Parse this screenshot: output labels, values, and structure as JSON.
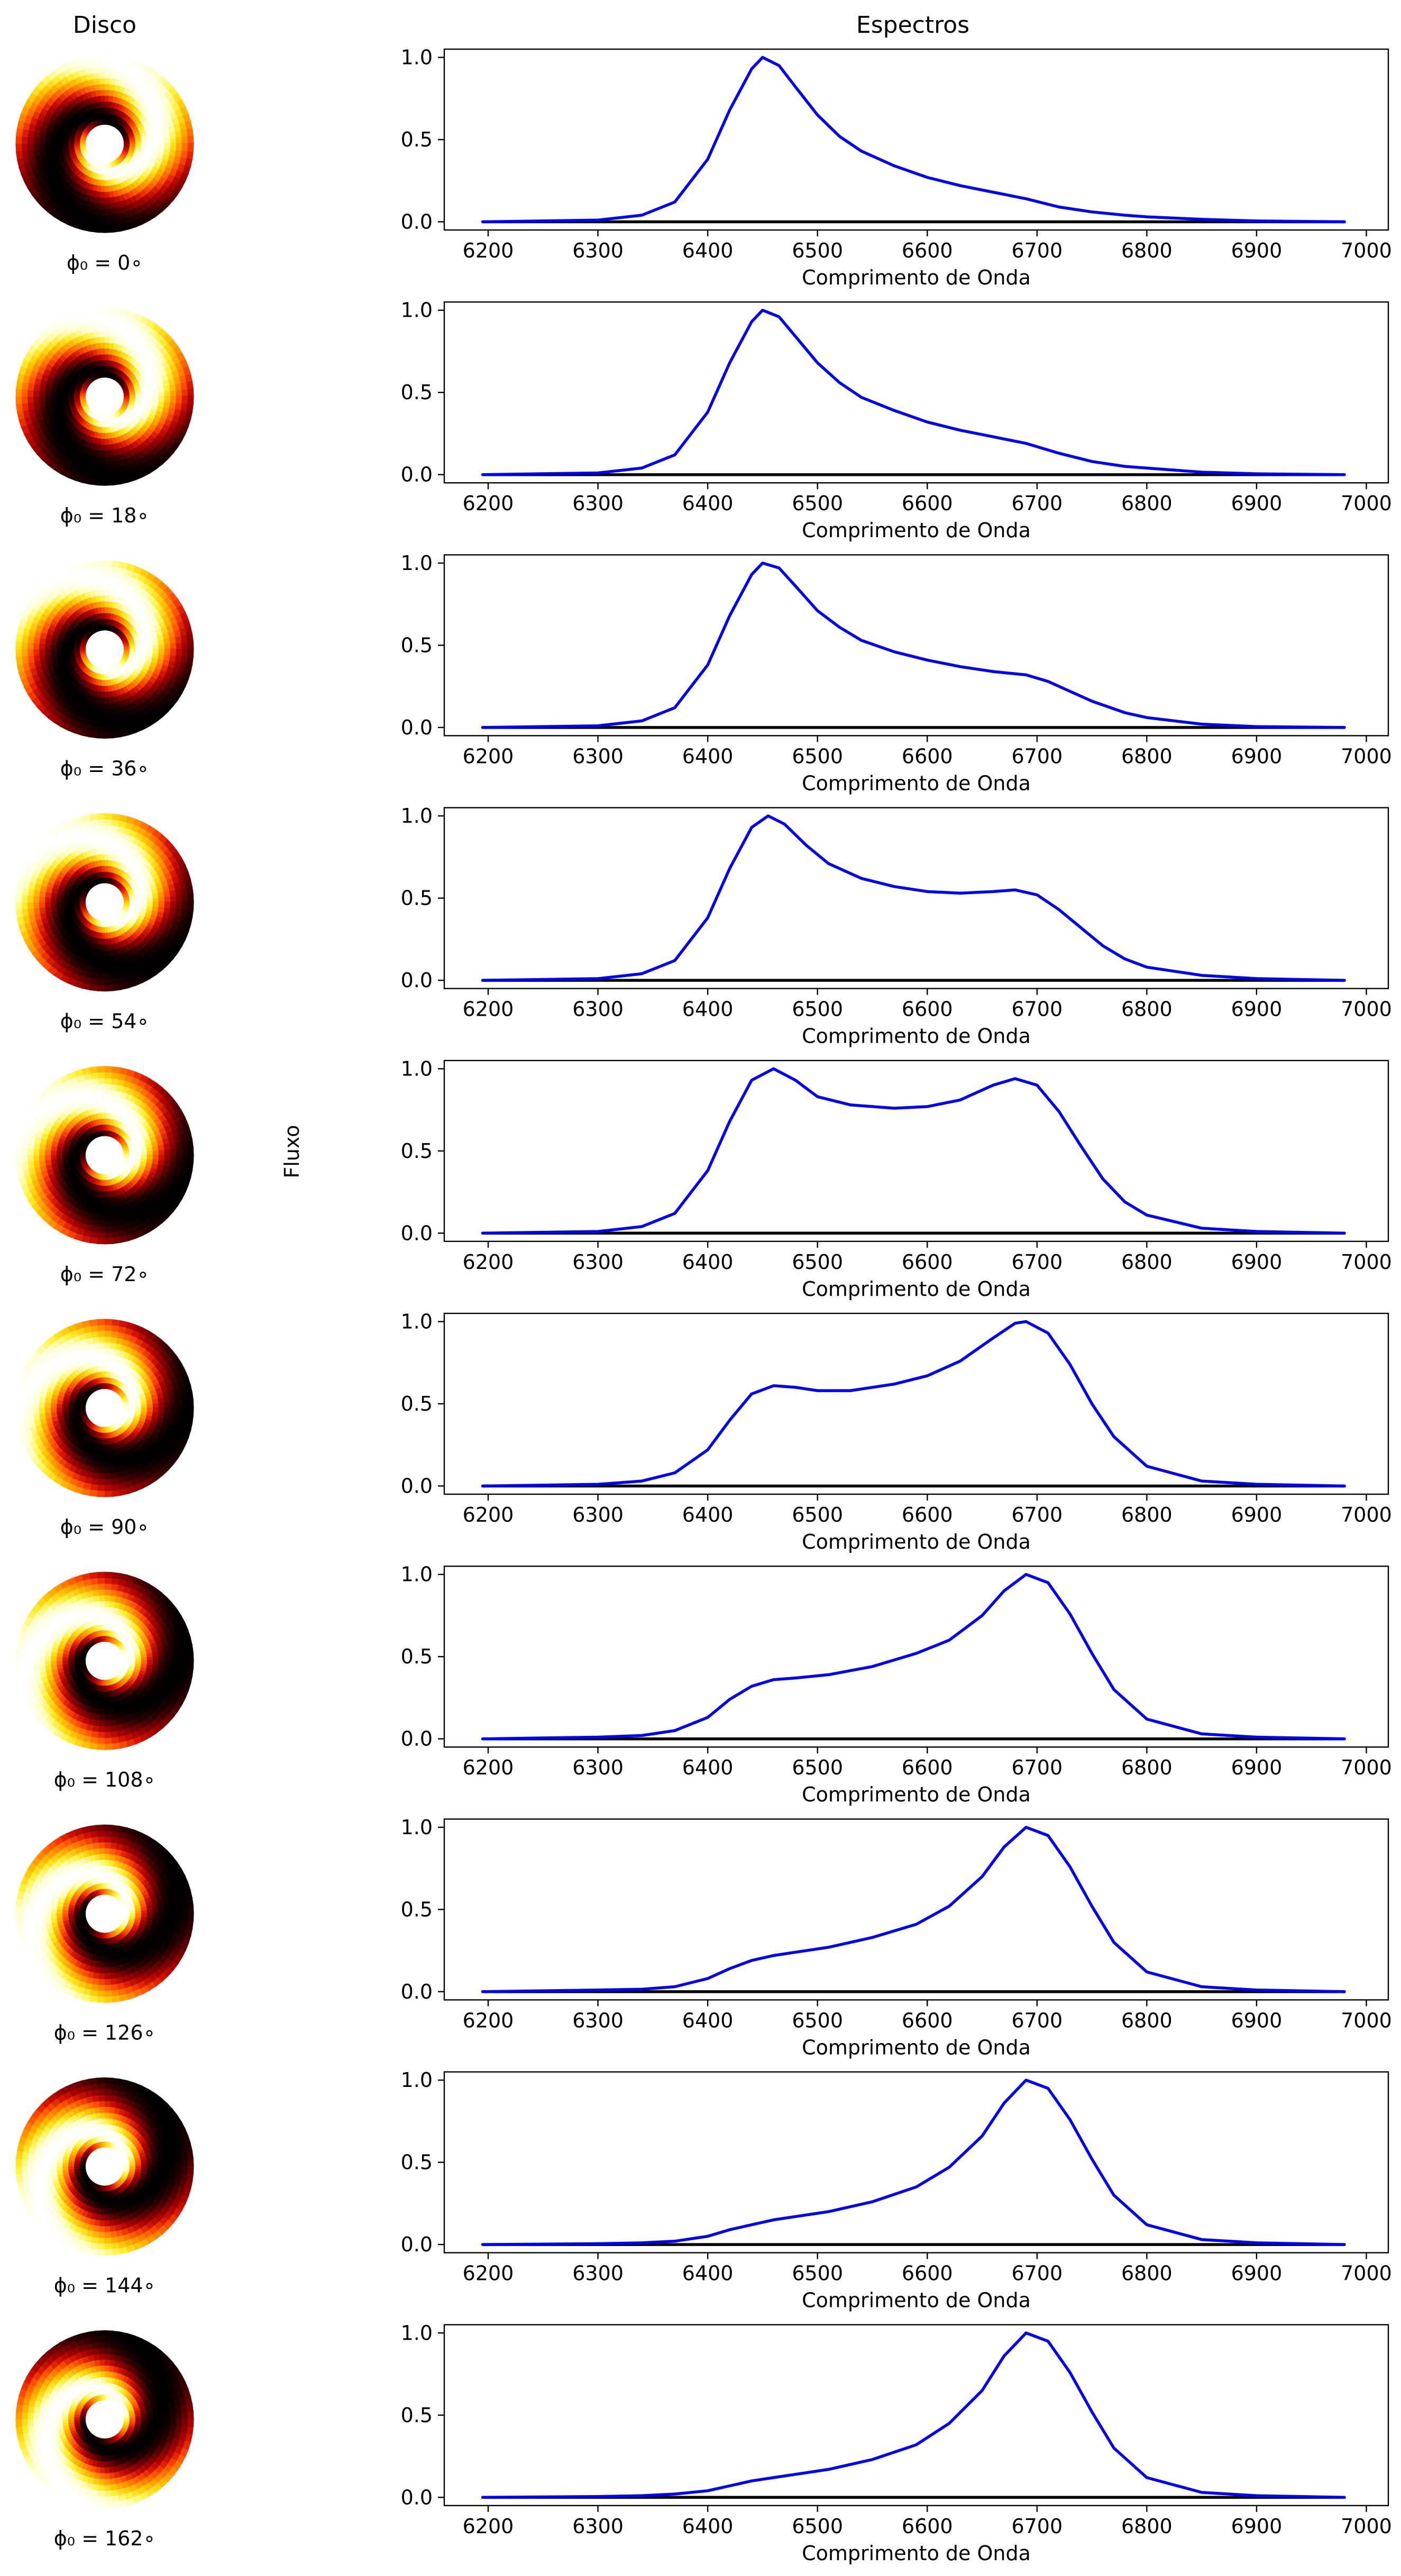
{
  "header": {
    "disk_title": "Disco",
    "spectra_title": "Espectros",
    "ylabel": "Fluxo"
  },
  "disk_colormap": [
    "#000000",
    "#2b0000",
    "#6a0000",
    "#a30000",
    "#d61600",
    "#ff4d00",
    "#ff8800",
    "#ffbf00",
    "#ffef30",
    "#ffffc8",
    "#ffffff"
  ],
  "chart_data": [
    {
      "type": "line",
      "phi_label": "ϕ₀ = 0∘",
      "phi0_deg": 0,
      "xlabel": "Comprimento de Onda",
      "xlim": [
        6160,
        7020
      ],
      "ylim": [
        -0.05,
        1.05
      ],
      "xticks": [
        6200,
        6300,
        6400,
        6500,
        6600,
        6700,
        6800,
        6900,
        7000
      ],
      "yticks": [
        "0.0",
        "0.5",
        "1.0"
      ],
      "series": [
        {
          "color": "#0000ff",
          "x": [
            6195,
            6300,
            6340,
            6370,
            6400,
            6420,
            6440,
            6450,
            6465,
            6480,
            6500,
            6520,
            6540,
            6570,
            6600,
            6630,
            6660,
            6690,
            6720,
            6750,
            6780,
            6800,
            6850,
            6900,
            6980
          ],
          "y": [
            0.0,
            0.01,
            0.04,
            0.12,
            0.38,
            0.68,
            0.93,
            1.0,
            0.95,
            0.82,
            0.65,
            0.52,
            0.43,
            0.34,
            0.27,
            0.22,
            0.18,
            0.14,
            0.09,
            0.06,
            0.04,
            0.03,
            0.015,
            0.005,
            0.0
          ]
        },
        {
          "color": "#000000",
          "x": [
            6195,
            6980
          ],
          "y": [
            0.0,
            0.0
          ]
        }
      ]
    },
    {
      "type": "line",
      "phi_label": "ϕ₀ = 18∘",
      "phi0_deg": 18,
      "xlabel": "Comprimento de Onda",
      "xlim": [
        6160,
        7020
      ],
      "ylim": [
        -0.05,
        1.05
      ],
      "xticks": [
        6200,
        6300,
        6400,
        6500,
        6600,
        6700,
        6800,
        6900,
        7000
      ],
      "yticks": [
        "0.0",
        "0.5",
        "1.0"
      ],
      "series": [
        {
          "color": "#0000ff",
          "x": [
            6195,
            6300,
            6340,
            6370,
            6400,
            6420,
            6440,
            6450,
            6465,
            6480,
            6500,
            6520,
            6540,
            6570,
            6600,
            6630,
            6660,
            6690,
            6720,
            6750,
            6780,
            6800,
            6850,
            6900,
            6980
          ],
          "y": [
            0.0,
            0.01,
            0.04,
            0.12,
            0.38,
            0.68,
            0.93,
            1.0,
            0.96,
            0.84,
            0.68,
            0.56,
            0.47,
            0.39,
            0.32,
            0.27,
            0.23,
            0.19,
            0.13,
            0.08,
            0.05,
            0.04,
            0.015,
            0.005,
            0.0
          ]
        },
        {
          "color": "#000000",
          "x": [
            6195,
            6980
          ],
          "y": [
            0.0,
            0.0
          ]
        }
      ]
    },
    {
      "type": "line",
      "phi_label": "ϕ₀ = 36∘",
      "phi0_deg": 36,
      "xlabel": "Comprimento de Onda",
      "xlim": [
        6160,
        7020
      ],
      "ylim": [
        -0.05,
        1.05
      ],
      "xticks": [
        6200,
        6300,
        6400,
        6500,
        6600,
        6700,
        6800,
        6900,
        7000
      ],
      "yticks": [
        "0.0",
        "0.5",
        "1.0"
      ],
      "series": [
        {
          "color": "#0000ff",
          "x": [
            6195,
            6300,
            6340,
            6370,
            6400,
            6420,
            6440,
            6450,
            6465,
            6480,
            6500,
            6520,
            6540,
            6570,
            6600,
            6630,
            6660,
            6690,
            6710,
            6730,
            6750,
            6780,
            6800,
            6850,
            6900,
            6980
          ],
          "y": [
            0.0,
            0.01,
            0.04,
            0.12,
            0.38,
            0.68,
            0.93,
            1.0,
            0.97,
            0.86,
            0.71,
            0.61,
            0.53,
            0.46,
            0.41,
            0.37,
            0.34,
            0.32,
            0.28,
            0.22,
            0.16,
            0.09,
            0.06,
            0.02,
            0.005,
            0.0
          ]
        },
        {
          "color": "#000000",
          "x": [
            6195,
            6980
          ],
          "y": [
            0.0,
            0.0
          ]
        }
      ]
    },
    {
      "type": "line",
      "phi_label": "ϕ₀ = 54∘",
      "phi0_deg": 54,
      "xlabel": "Comprimento de Onda",
      "xlim": [
        6160,
        7020
      ],
      "ylim": [
        -0.05,
        1.05
      ],
      "xticks": [
        6200,
        6300,
        6400,
        6500,
        6600,
        6700,
        6800,
        6900,
        7000
      ],
      "yticks": [
        "0.0",
        "0.5",
        "1.0"
      ],
      "series": [
        {
          "color": "#0000ff",
          "x": [
            6195,
            6300,
            6340,
            6370,
            6400,
            6420,
            6440,
            6455,
            6470,
            6490,
            6510,
            6540,
            6570,
            6600,
            6630,
            6660,
            6680,
            6700,
            6720,
            6740,
            6760,
            6780,
            6800,
            6850,
            6900,
            6980
          ],
          "y": [
            0.0,
            0.01,
            0.04,
            0.12,
            0.38,
            0.68,
            0.93,
            1.0,
            0.95,
            0.82,
            0.71,
            0.62,
            0.57,
            0.54,
            0.53,
            0.54,
            0.55,
            0.52,
            0.43,
            0.32,
            0.21,
            0.13,
            0.08,
            0.03,
            0.01,
            0.0
          ]
        },
        {
          "color": "#000000",
          "x": [
            6195,
            6980
          ],
          "y": [
            0.0,
            0.0
          ]
        }
      ]
    },
    {
      "type": "line",
      "phi_label": "ϕ₀ = 72∘",
      "phi0_deg": 72,
      "xlabel": "Comprimento de Onda",
      "xlim": [
        6160,
        7020
      ],
      "ylim": [
        -0.05,
        1.05
      ],
      "xticks": [
        6200,
        6300,
        6400,
        6500,
        6600,
        6700,
        6800,
        6900,
        7000
      ],
      "yticks": [
        "0.0",
        "0.5",
        "1.0"
      ],
      "series": [
        {
          "color": "#0000ff",
          "x": [
            6195,
            6300,
            6340,
            6370,
            6400,
            6420,
            6440,
            6460,
            6480,
            6500,
            6530,
            6570,
            6600,
            6630,
            6660,
            6680,
            6700,
            6720,
            6740,
            6760,
            6780,
            6800,
            6850,
            6900,
            6980
          ],
          "y": [
            0.0,
            0.01,
            0.04,
            0.12,
            0.38,
            0.68,
            0.93,
            1.0,
            0.93,
            0.83,
            0.78,
            0.76,
            0.77,
            0.81,
            0.9,
            0.94,
            0.9,
            0.74,
            0.53,
            0.33,
            0.19,
            0.11,
            0.03,
            0.01,
            0.0
          ]
        },
        {
          "color": "#000000",
          "x": [
            6195,
            6980
          ],
          "y": [
            0.0,
            0.0
          ]
        }
      ]
    },
    {
      "type": "line",
      "phi_label": "ϕ₀ = 90∘",
      "phi0_deg": 90,
      "xlabel": "Comprimento de Onda",
      "xlim": [
        6160,
        7020
      ],
      "ylim": [
        -0.05,
        1.05
      ],
      "xticks": [
        6200,
        6300,
        6400,
        6500,
        6600,
        6700,
        6800,
        6900,
        7000
      ],
      "yticks": [
        "0.0",
        "0.5",
        "1.0"
      ],
      "series": [
        {
          "color": "#0000ff",
          "x": [
            6195,
            6300,
            6340,
            6370,
            6400,
            6420,
            6440,
            6460,
            6480,
            6500,
            6530,
            6570,
            6600,
            6630,
            6660,
            6680,
            6690,
            6710,
            6730,
            6750,
            6770,
            6800,
            6850,
            6900,
            6980
          ],
          "y": [
            0.0,
            0.01,
            0.03,
            0.08,
            0.22,
            0.4,
            0.56,
            0.61,
            0.6,
            0.58,
            0.58,
            0.62,
            0.67,
            0.76,
            0.9,
            0.99,
            1.0,
            0.93,
            0.74,
            0.5,
            0.3,
            0.12,
            0.03,
            0.01,
            0.0
          ]
        },
        {
          "color": "#000000",
          "x": [
            6195,
            6980
          ],
          "y": [
            0.0,
            0.0
          ]
        }
      ]
    },
    {
      "type": "line",
      "phi_label": "ϕ₀ = 108∘",
      "phi0_deg": 108,
      "xlabel": "Comprimento de Onda",
      "xlim": [
        6160,
        7020
      ],
      "ylim": [
        -0.05,
        1.05
      ],
      "xticks": [
        6200,
        6300,
        6400,
        6500,
        6600,
        6700,
        6800,
        6900,
        7000
      ],
      "yticks": [
        "0.0",
        "0.5",
        "1.0"
      ],
      "series": [
        {
          "color": "#0000ff",
          "x": [
            6195,
            6300,
            6340,
            6370,
            6400,
            6420,
            6440,
            6460,
            6480,
            6510,
            6550,
            6590,
            6620,
            6650,
            6670,
            6690,
            6710,
            6730,
            6750,
            6770,
            6800,
            6850,
            6900,
            6980
          ],
          "y": [
            0.0,
            0.01,
            0.02,
            0.05,
            0.13,
            0.24,
            0.32,
            0.36,
            0.37,
            0.39,
            0.44,
            0.52,
            0.6,
            0.75,
            0.9,
            1.0,
            0.95,
            0.76,
            0.52,
            0.3,
            0.12,
            0.03,
            0.01,
            0.0
          ]
        },
        {
          "color": "#000000",
          "x": [
            6195,
            6980
          ],
          "y": [
            0.0,
            0.0
          ]
        }
      ]
    },
    {
      "type": "line",
      "phi_label": "ϕ₀ = 126∘",
      "phi0_deg": 126,
      "xlabel": "Comprimento de Onda",
      "xlim": [
        6160,
        7020
      ],
      "ylim": [
        -0.05,
        1.05
      ],
      "xticks": [
        6200,
        6300,
        6400,
        6500,
        6600,
        6700,
        6800,
        6900,
        7000
      ],
      "yticks": [
        "0.0",
        "0.5",
        "1.0"
      ],
      "series": [
        {
          "color": "#0000ff",
          "x": [
            6195,
            6300,
            6340,
            6370,
            6400,
            6420,
            6440,
            6460,
            6480,
            6510,
            6550,
            6590,
            6620,
            6650,
            6670,
            6690,
            6710,
            6730,
            6750,
            6770,
            6800,
            6850,
            6900,
            6980
          ],
          "y": [
            0.0,
            0.01,
            0.015,
            0.03,
            0.08,
            0.14,
            0.19,
            0.22,
            0.24,
            0.27,
            0.33,
            0.41,
            0.52,
            0.7,
            0.88,
            1.0,
            0.95,
            0.76,
            0.52,
            0.3,
            0.12,
            0.03,
            0.01,
            0.0
          ]
        },
        {
          "color": "#000000",
          "x": [
            6195,
            6980
          ],
          "y": [
            0.0,
            0.0
          ]
        }
      ]
    },
    {
      "type": "line",
      "phi_label": "ϕ₀ = 144∘",
      "phi0_deg": 144,
      "xlabel": "Comprimento de Onda",
      "xlim": [
        6160,
        7020
      ],
      "ylim": [
        -0.05,
        1.05
      ],
      "xticks": [
        6200,
        6300,
        6400,
        6500,
        6600,
        6700,
        6800,
        6900,
        7000
      ],
      "yticks": [
        "0.0",
        "0.5",
        "1.0"
      ],
      "series": [
        {
          "color": "#0000ff",
          "x": [
            6195,
            6300,
            6340,
            6370,
            6400,
            6420,
            6440,
            6460,
            6480,
            6510,
            6550,
            6590,
            6620,
            6650,
            6670,
            6690,
            6710,
            6730,
            6750,
            6770,
            6800,
            6850,
            6900,
            6980
          ],
          "y": [
            0.0,
            0.005,
            0.01,
            0.02,
            0.05,
            0.09,
            0.12,
            0.15,
            0.17,
            0.2,
            0.26,
            0.35,
            0.47,
            0.66,
            0.86,
            1.0,
            0.95,
            0.76,
            0.52,
            0.3,
            0.12,
            0.03,
            0.01,
            0.0
          ]
        },
        {
          "color": "#000000",
          "x": [
            6195,
            6980
          ],
          "y": [
            0.0,
            0.0
          ]
        }
      ]
    },
    {
      "type": "line",
      "phi_label": "ϕ₀ = 162∘",
      "phi0_deg": 162,
      "xlabel": "Comprimento de Onda",
      "xlim": [
        6160,
        7020
      ],
      "ylim": [
        -0.05,
        1.05
      ],
      "xticks": [
        6200,
        6300,
        6400,
        6500,
        6600,
        6700,
        6800,
        6900,
        7000
      ],
      "yticks": [
        "0.0",
        "0.5",
        "1.0"
      ],
      "series": [
        {
          "color": "#0000ff",
          "x": [
            6195,
            6300,
            6340,
            6370,
            6400,
            6420,
            6440,
            6460,
            6480,
            6510,
            6550,
            6590,
            6620,
            6650,
            6670,
            6690,
            6710,
            6730,
            6750,
            6770,
            6800,
            6850,
            6900,
            6980
          ],
          "y": [
            0.0,
            0.005,
            0.01,
            0.02,
            0.04,
            0.07,
            0.1,
            0.12,
            0.14,
            0.17,
            0.23,
            0.32,
            0.45,
            0.65,
            0.86,
            1.0,
            0.95,
            0.76,
            0.52,
            0.3,
            0.12,
            0.03,
            0.01,
            0.0
          ]
        },
        {
          "color": "#000000",
          "x": [
            6195,
            6980
          ],
          "y": [
            0.0,
            0.0
          ]
        }
      ]
    }
  ]
}
